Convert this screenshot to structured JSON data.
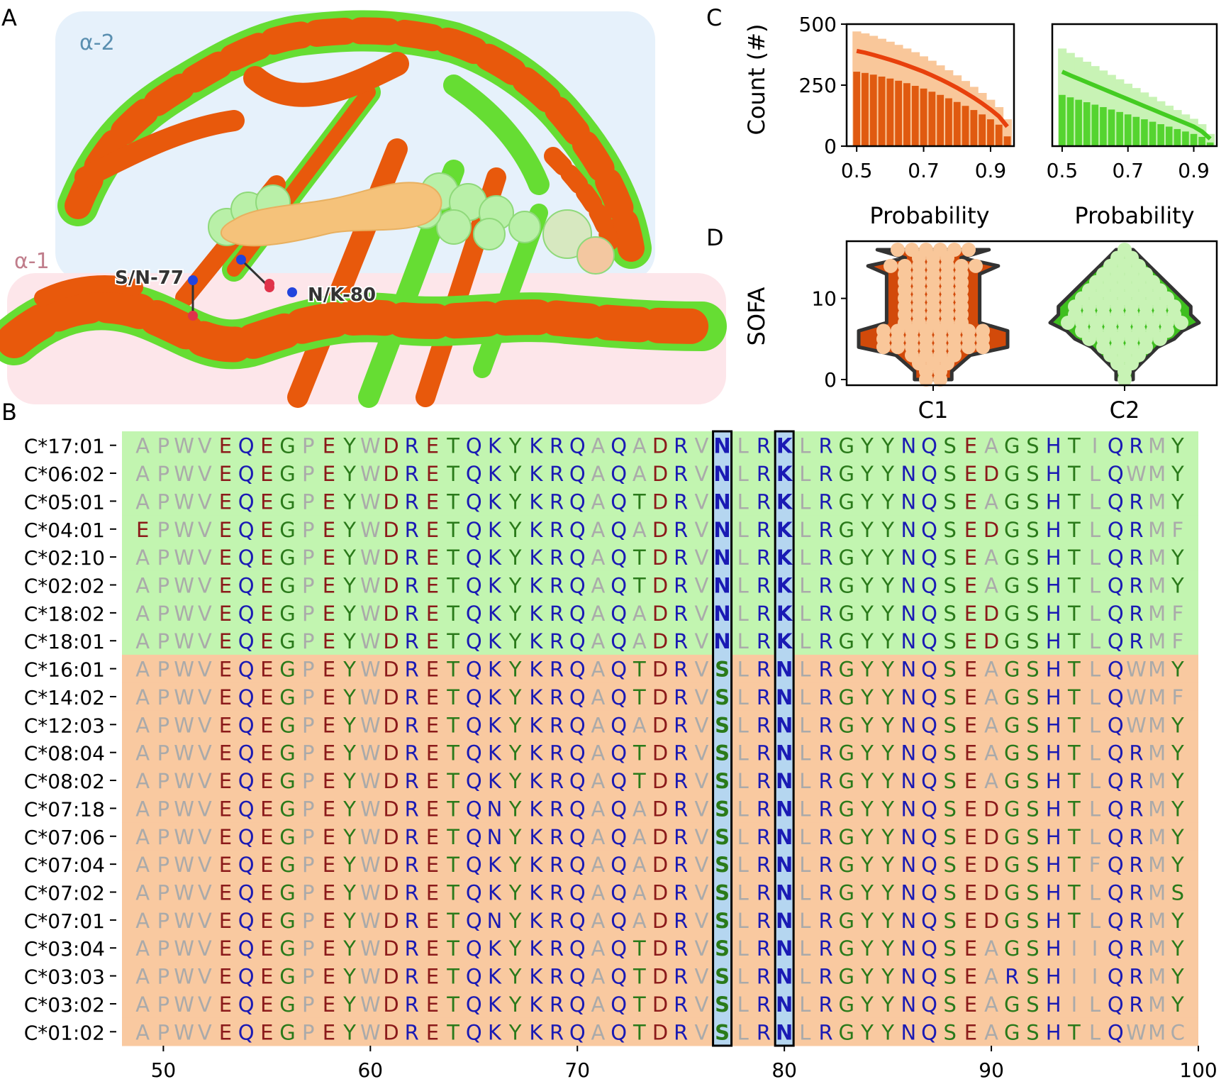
{
  "panels": {
    "A": {
      "letter": "A",
      "region_alpha2": "α-2",
      "region_alpha1": "α-1",
      "label_77": "S/N-77",
      "label_80": "N/K-80",
      "colors": {
        "c1": "#e8590c",
        "c2": "#66dd33",
        "ligand": "#f5c27a",
        "alpha2_bg": "#e6f1fb",
        "alpha1_bg": "#fde6ea",
        "pocket": "#b9f0a8"
      }
    },
    "C": {
      "letter": "C",
      "ylabel": "Count (#)",
      "xlabel_left": "Probability",
      "xlabel_right": "Probability",
      "yticks": [
        "0",
        "250",
        "500"
      ],
      "xticks": [
        "0.5",
        "0.7",
        "0.9"
      ]
    },
    "D": {
      "letter": "D",
      "ylabel": "SOFA",
      "yticks": [
        "0",
        "10"
      ],
      "groups": [
        "C1",
        "C2"
      ]
    },
    "B": {
      "letter": "B",
      "xticks": [
        "50",
        "60",
        "70",
        "80",
        "90",
        "100"
      ]
    }
  },
  "chart_data": [
    {
      "id": "C-left",
      "type": "bar",
      "x": [
        0.5,
        0.525,
        0.55,
        0.575,
        0.6,
        0.625,
        0.65,
        0.675,
        0.7,
        0.725,
        0.75,
        0.775,
        0.8,
        0.825,
        0.85,
        0.875,
        0.9,
        0.925,
        0.95
      ],
      "series": [
        {
          "values": [
            390,
            383,
            374,
            364,
            354,
            343,
            331,
            318,
            305,
            290,
            274,
            257,
            239,
            219,
            198,
            175,
            150,
            122,
            80
          ]
        }
      ],
      "band_upper": [
        470,
        462,
        452,
        440,
        428,
        415,
        400,
        385,
        368,
        350,
        331,
        311,
        290,
        267,
        243,
        218,
        190,
        160,
        110
      ],
      "bars_lower": [
        305,
        300,
        293,
        285,
        277,
        268,
        258,
        247,
        236,
        223,
        210,
        196,
        181,
        165,
        148,
        130,
        110,
        88,
        40
      ],
      "xlim": [
        0.47,
        0.97
      ],
      "ylim": [
        0,
        500
      ],
      "color_line": "#e8400c",
      "color_band": "#f9c79a",
      "color_bars": "#e05a10"
    },
    {
      "id": "C-right",
      "type": "bar",
      "x": [
        0.5,
        0.525,
        0.55,
        0.575,
        0.6,
        0.625,
        0.65,
        0.675,
        0.7,
        0.725,
        0.75,
        0.775,
        0.8,
        0.825,
        0.85,
        0.875,
        0.9,
        0.925,
        0.95
      ],
      "series": [
        {
          "values": [
            305,
            290,
            276,
            262,
            248,
            234,
            220,
            206,
            192,
            178,
            164,
            150,
            136,
            122,
            108,
            94,
            80,
            60,
            30
          ]
        }
      ],
      "band_upper": [
        400,
        382,
        364,
        346,
        328,
        310,
        292,
        274,
        256,
        238,
        220,
        202,
        184,
        166,
        148,
        130,
        112,
        90,
        50
      ],
      "bars_lower": [
        210,
        200,
        190,
        180,
        170,
        160,
        150,
        140,
        130,
        120,
        110,
        100,
        90,
        80,
        70,
        60,
        50,
        38,
        15
      ],
      "xlim": [
        0.47,
        0.97
      ],
      "ylim": [
        0,
        500
      ],
      "color_line": "#44cc22",
      "color_band": "#c8f3b5",
      "color_bars": "#55d430"
    },
    {
      "id": "D",
      "type": "scatter",
      "categories": [
        "C1",
        "C2"
      ],
      "ylim": [
        0,
        16
      ],
      "series": [
        {
          "values": [
            16,
            16,
            16,
            16,
            16,
            16,
            15,
            15,
            15,
            14,
            14,
            14,
            14,
            14,
            14,
            14,
            13,
            13,
            13,
            13,
            13,
            12,
            12,
            12,
            12,
            12,
            11,
            11,
            11,
            11,
            11,
            10,
            10,
            10,
            10,
            10,
            9,
            9,
            9,
            9,
            9,
            8,
            8,
            8,
            8,
            8,
            7,
            7,
            7,
            7,
            7,
            6,
            6,
            6,
            6,
            6,
            6,
            6,
            6,
            5,
            5,
            5,
            5,
            5,
            5,
            5,
            5,
            4,
            4,
            4,
            4,
            4,
            4,
            4,
            4,
            3,
            3,
            3,
            3,
            2,
            2,
            2,
            1,
            1,
            0,
            0
          ],
          "color_fill": "#d24a0a",
          "color_point": "#f9c79a"
        },
        {
          "values": [
            16,
            15,
            15,
            14,
            14,
            14,
            13,
            13,
            13,
            13,
            12,
            12,
            12,
            12,
            12,
            11,
            11,
            11,
            11,
            11,
            11,
            10,
            10,
            10,
            10,
            10,
            10,
            10,
            9,
            9,
            9,
            9,
            9,
            9,
            9,
            9,
            8,
            8,
            8,
            8,
            8,
            8,
            8,
            8,
            7,
            7,
            7,
            7,
            7,
            7,
            7,
            7,
            7,
            6,
            6,
            6,
            6,
            6,
            6,
            6,
            5,
            5,
            5,
            5,
            5,
            5,
            4,
            4,
            4,
            4,
            3,
            3,
            3,
            2,
            2,
            1,
            0
          ],
          "color_fill": "#3fbf1f",
          "color_point": "#c8f3b5"
        }
      ]
    },
    {
      "id": "B",
      "type": "table",
      "x_start": 49,
      "xlim": [
        48,
        100
      ],
      "highlight_positions": [
        77,
        80
      ],
      "rows": [
        {
          "label": "C*17:01",
          "group": "C2",
          "seq": "APWVEQEGPEYWDRETQKYKRQAQADRVNLRKLRGYYNQSEAGSHTIQRMY"
        },
        {
          "label": "C*06:02",
          "group": "C2",
          "seq": "APWVEQEGPEYWDRETQKYKRQAQADRVNLRKLRGYYNQSEDGSHTLQWMY"
        },
        {
          "label": "C*05:01",
          "group": "C2",
          "seq": "APWVEQEGPEYWDRETQKYKRQAQTDRVNLRKLRGYYNQSEAGSHTLQRMY"
        },
        {
          "label": "C*04:01",
          "group": "C2",
          "seq": "EPWVEQEGPEYWDRETQKYKRQAQADRVNLRKLRGYYNQSEDGSHTLQRMF"
        },
        {
          "label": "C*02:10",
          "group": "C2",
          "seq": "APWVEQEGPEYWDRETQKYKRQAQTDRVNLRKLRGYYNQSEAGSHTLQRMY"
        },
        {
          "label": "C*02:02",
          "group": "C2",
          "seq": "APWVEQEGPEYWDRETQKYKRQAQTDRVNLRKLRGYYNQSEAGSHTLQRMY"
        },
        {
          "label": "C*18:02",
          "group": "C2",
          "seq": "APWVEQEGPEYWDRETQKYKRQAQADRVNLRKLRGYYNQSEDGSHTLQRMF"
        },
        {
          "label": "C*18:01",
          "group": "C2",
          "seq": "APWVEQEGPEYWDRETQKYKRQAQADRVNLRKLRGYYNQSEDGSHTLQRMF"
        },
        {
          "label": "C*16:01",
          "group": "C1",
          "seq": "APWVEQEGPEYWDRETQKYKRQAQTDRVSLRNLRGYYNQSEAGSHTLQWMY"
        },
        {
          "label": "C*14:02",
          "group": "C1",
          "seq": "APWVEQEGPEYWDRETQKYKRQAQTDRVSLRNLRGYYNQSEAGSHTLQWMF"
        },
        {
          "label": "C*12:03",
          "group": "C1",
          "seq": "APWVEQEGPEYWDRETQKYKRQAQADRVSLRNLRGYYNQSEAGSHTLQWMY"
        },
        {
          "label": "C*08:04",
          "group": "C1",
          "seq": "APWVEQEGPEYWDRETQKYKRQAQTDRVSLRNLRGYYNQSEAGSHTLQRMY"
        },
        {
          "label": "C*08:02",
          "group": "C1",
          "seq": "APWVEQEGPEYWDRETQKYKRQAQTDRVSLRNLRGYYNQSEAGSHTLQRMY"
        },
        {
          "label": "C*07:18",
          "group": "C1",
          "seq": "APWVEQEGPEYWDRETQNYKRQAQADRVSLRNLRGYYNQSEDGSHTLQRMY"
        },
        {
          "label": "C*07:06",
          "group": "C1",
          "seq": "APWVEQEGPEYWDRETQNYKRQAQADRVSLRNLRGYYNQSEDGSHTLQRMY"
        },
        {
          "label": "C*07:04",
          "group": "C1",
          "seq": "APWVEQEGPEYWDRETQKYKRQAQADRVSLRNLRGYYNQSEDGSHTFQRMY"
        },
        {
          "label": "C*07:02",
          "group": "C1",
          "seq": "APWVEQEGPEYWDRETQKYKRQAQADRVSLRNLRGYYNQSEDGSHTLQRMS"
        },
        {
          "label": "C*07:01",
          "group": "C1",
          "seq": "APWVEQEGPEYWDRETQNYKRQAQADRVSLRNLRGYYNQSEDGSHTLQRMY"
        },
        {
          "label": "C*03:04",
          "group": "C1",
          "seq": "APWVEQEGPEYWDRETQKYKRQAQTDRVSLRNLRGYYNQSEAGSHIIQRMY"
        },
        {
          "label": "C*03:03",
          "group": "C1",
          "seq": "APWVEQEGPEYWDRETQKYKRQAQTDRVSLRNLRGYYNQSEARSHIIQRMY"
        },
        {
          "label": "C*03:02",
          "group": "C1",
          "seq": "APWVEQEGPEYWDRETQKYKRQAQTDRVSLRNLRGYYNQSEAGSHILQRMY"
        },
        {
          "label": "C*01:02",
          "group": "C1",
          "seq": "APWVEQEGPEYWDRETQKYKRQAQTDRVSLRNLRGYYNQSEAGSHTLQWMC"
        }
      ],
      "colors": {
        "row_bg_C2": "#c2f5b0",
        "row_bg_C1": "#f9c9a0",
        "highlight_bg": "#b5d6f0",
        "hydrophobic": "#aaaaaa",
        "acidic": "#8b1a1a",
        "basic": "#1a1ab4",
        "polar": "#2a7a1a",
        "amide": "#1a1ab4"
      }
    }
  ]
}
